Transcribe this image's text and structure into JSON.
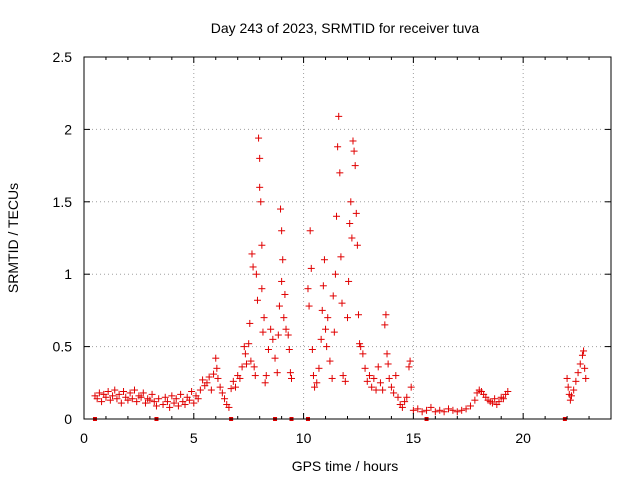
{
  "chart_data": {
    "type": "scatter",
    "title": "Day 243 of 2023, SRMTID for receiver tuva",
    "xlabel": "GPS time / hours",
    "ylabel": "SRMTID / TECUs",
    "xlim": [
      0,
      24
    ],
    "ylim": [
      0,
      2.5
    ],
    "xticks": [
      "0",
      "5",
      "10",
      "15",
      "20"
    ],
    "yticks": [
      "0",
      "0.5",
      "1",
      "1.5",
      "2",
      "2.5"
    ],
    "grid": true,
    "marker": "+",
    "color": "#e00000",
    "series": [
      {
        "name": "SRMTID",
        "points": [
          [
            0.5,
            0.16
          ],
          [
            0.6,
            0.14
          ],
          [
            0.7,
            0.18
          ],
          [
            0.8,
            0.12
          ],
          [
            0.9,
            0.17
          ],
          [
            1.0,
            0.15
          ],
          [
            1.1,
            0.19
          ],
          [
            1.2,
            0.13
          ],
          [
            1.3,
            0.16
          ],
          [
            1.4,
            0.2
          ],
          [
            1.5,
            0.14
          ],
          [
            1.6,
            0.17
          ],
          [
            1.7,
            0.11
          ],
          [
            1.8,
            0.19
          ],
          [
            1.9,
            0.15
          ],
          [
            2.0,
            0.13
          ],
          [
            2.1,
            0.18
          ],
          [
            2.2,
            0.14
          ],
          [
            2.3,
            0.2
          ],
          [
            2.4,
            0.12
          ],
          [
            2.5,
            0.16
          ],
          [
            2.6,
            0.15
          ],
          [
            2.7,
            0.18
          ],
          [
            2.8,
            0.11
          ],
          [
            2.9,
            0.14
          ],
          [
            3.0,
            0.13
          ],
          [
            3.1,
            0.17
          ],
          [
            3.2,
            0.12
          ],
          [
            3.3,
            0.09
          ],
          [
            3.4,
            0.14
          ],
          [
            3.6,
            0.1
          ],
          [
            3.7,
            0.15
          ],
          [
            3.8,
            0.12
          ],
          [
            3.9,
            0.08
          ],
          [
            4.0,
            0.16
          ],
          [
            4.1,
            0.11
          ],
          [
            4.2,
            0.14
          ],
          [
            4.3,
            0.09
          ],
          [
            4.4,
            0.17
          ],
          [
            4.5,
            0.12
          ],
          [
            4.6,
            0.1
          ],
          [
            4.7,
            0.15
          ],
          [
            4.8,
            0.13
          ],
          [
            4.9,
            0.19
          ],
          [
            5.0,
            0.11
          ],
          [
            5.1,
            0.16
          ],
          [
            5.2,
            0.14
          ],
          [
            5.3,
            0.2
          ],
          [
            5.4,
            0.27
          ],
          [
            5.5,
            0.23
          ],
          [
            5.6,
            0.25
          ],
          [
            5.7,
            0.29
          ],
          [
            5.8,
            0.2
          ],
          [
            5.9,
            0.31
          ],
          [
            6.0,
            0.42
          ],
          [
            6.05,
            0.35
          ],
          [
            6.1,
            0.28
          ],
          [
            6.2,
            0.22
          ],
          [
            6.3,
            0.18
          ],
          [
            6.4,
            0.14
          ],
          [
            6.5,
            0.1
          ],
          [
            6.6,
            0.08
          ],
          [
            6.7,
            0.21
          ],
          [
            6.8,
            0.26
          ],
          [
            6.9,
            0.22
          ],
          [
            7.0,
            0.3
          ],
          [
            7.1,
            0.28
          ],
          [
            7.2,
            0.36
          ],
          [
            7.3,
            0.5
          ],
          [
            7.35,
            0.45
          ],
          [
            7.4,
            0.38
          ],
          [
            7.5,
            0.52
          ],
          [
            7.55,
            0.66
          ],
          [
            7.6,
            0.4
          ],
          [
            7.65,
            1.14
          ],
          [
            7.7,
            1.05
          ],
          [
            7.75,
            0.36
          ],
          [
            7.8,
            0.3
          ],
          [
            7.85,
            1.0
          ],
          [
            7.9,
            0.82
          ],
          [
            7.95,
            1.94
          ],
          [
            8.0,
            1.8
          ],
          [
            8.0,
            1.6
          ],
          [
            8.05,
            1.5
          ],
          [
            8.1,
            1.2
          ],
          [
            8.1,
            0.9
          ],
          [
            8.15,
            0.6
          ],
          [
            8.2,
            0.7
          ],
          [
            8.25,
            0.25
          ],
          [
            8.3,
            0.3
          ],
          [
            8.4,
            0.48
          ],
          [
            8.5,
            0.62
          ],
          [
            8.6,
            0.55
          ],
          [
            8.7,
            0.42
          ],
          [
            8.8,
            0.32
          ],
          [
            8.85,
            0.58
          ],
          [
            8.9,
            0.78
          ],
          [
            8.95,
            1.45
          ],
          [
            9.0,
            1.3
          ],
          [
            9.0,
            0.95
          ],
          [
            9.05,
            1.1
          ],
          [
            9.1,
            0.7
          ],
          [
            9.15,
            0.86
          ],
          [
            9.2,
            0.62
          ],
          [
            9.3,
            0.58
          ],
          [
            9.35,
            0.48
          ],
          [
            9.4,
            0.32
          ],
          [
            9.45,
            0.28
          ],
          [
            10.2,
            0.9
          ],
          [
            10.25,
            0.78
          ],
          [
            10.3,
            1.3
          ],
          [
            10.35,
            1.04
          ],
          [
            10.4,
            0.48
          ],
          [
            10.45,
            0.3
          ],
          [
            10.5,
            0.22
          ],
          [
            10.6,
            0.25
          ],
          [
            10.7,
            0.35
          ],
          [
            10.8,
            0.55
          ],
          [
            10.85,
            0.75
          ],
          [
            10.9,
            0.92
          ],
          [
            10.95,
            1.1
          ],
          [
            11.0,
            0.62
          ],
          [
            11.05,
            0.5
          ],
          [
            11.1,
            0.7
          ],
          [
            11.2,
            0.4
          ],
          [
            11.3,
            0.28
          ],
          [
            11.35,
            0.85
          ],
          [
            11.4,
            0.6
          ],
          [
            11.45,
            1.0
          ],
          [
            11.5,
            1.4
          ],
          [
            11.55,
            1.88
          ],
          [
            11.6,
            2.09
          ],
          [
            11.65,
            1.7
          ],
          [
            11.7,
            1.12
          ],
          [
            11.75,
            0.8
          ],
          [
            11.8,
            0.3
          ],
          [
            11.9,
            0.26
          ],
          [
            12.0,
            0.7
          ],
          [
            12.05,
            0.95
          ],
          [
            12.1,
            1.35
          ],
          [
            12.15,
            1.5
          ],
          [
            12.2,
            1.25
          ],
          [
            12.25,
            1.92
          ],
          [
            12.3,
            1.85
          ],
          [
            12.35,
            1.75
          ],
          [
            12.4,
            1.42
          ],
          [
            12.45,
            1.2
          ],
          [
            12.5,
            0.72
          ],
          [
            12.55,
            0.52
          ],
          [
            12.6,
            0.5
          ],
          [
            12.7,
            0.45
          ],
          [
            12.8,
            0.35
          ],
          [
            12.9,
            0.26
          ],
          [
            13.0,
            0.3
          ],
          [
            13.1,
            0.22
          ],
          [
            13.2,
            0.28
          ],
          [
            13.3,
            0.2
          ],
          [
            13.4,
            0.36
          ],
          [
            13.5,
            0.25
          ],
          [
            13.6,
            0.2
          ],
          [
            13.7,
            0.65
          ],
          [
            13.75,
            0.72
          ],
          [
            13.8,
            0.45
          ],
          [
            13.85,
            0.38
          ],
          [
            13.9,
            0.28
          ],
          [
            14.0,
            0.22
          ],
          [
            14.1,
            0.18
          ],
          [
            14.2,
            0.3
          ],
          [
            14.3,
            0.15
          ],
          [
            14.4,
            0.1
          ],
          [
            14.5,
            0.08
          ],
          [
            14.6,
            0.12
          ],
          [
            14.7,
            0.15
          ],
          [
            14.8,
            0.36
          ],
          [
            14.85,
            0.4
          ],
          [
            14.9,
            0.22
          ],
          [
            15.0,
            0.06
          ],
          [
            15.2,
            0.07
          ],
          [
            15.4,
            0.05
          ],
          [
            15.6,
            0.06
          ],
          [
            15.8,
            0.08
          ],
          [
            16.0,
            0.05
          ],
          [
            16.2,
            0.06
          ],
          [
            16.4,
            0.05
          ],
          [
            16.6,
            0.07
          ],
          [
            16.8,
            0.06
          ],
          [
            17.0,
            0.05
          ],
          [
            17.2,
            0.06
          ],
          [
            17.4,
            0.07
          ],
          [
            17.6,
            0.09
          ],
          [
            17.8,
            0.13
          ],
          [
            17.9,
            0.18
          ],
          [
            18.0,
            0.2
          ],
          [
            18.1,
            0.19
          ],
          [
            18.2,
            0.17
          ],
          [
            18.3,
            0.15
          ],
          [
            18.4,
            0.13
          ],
          [
            18.5,
            0.12
          ],
          [
            18.6,
            0.11
          ],
          [
            18.7,
            0.14
          ],
          [
            18.8,
            0.1
          ],
          [
            18.9,
            0.12
          ],
          [
            19.0,
            0.15
          ],
          [
            19.1,
            0.14
          ],
          [
            19.2,
            0.17
          ],
          [
            19.3,
            0.19
          ],
          [
            22.0,
            0.28
          ],
          [
            22.05,
            0.22
          ],
          [
            22.1,
            0.17
          ],
          [
            22.15,
            0.13
          ],
          [
            22.2,
            0.16
          ],
          [
            22.3,
            0.2
          ],
          [
            22.4,
            0.26
          ],
          [
            22.5,
            0.32
          ],
          [
            22.6,
            0.38
          ],
          [
            22.7,
            0.44
          ],
          [
            22.75,
            0.47
          ],
          [
            22.8,
            0.35
          ],
          [
            22.85,
            0.28
          ]
        ]
      }
    ],
    "axis_markers_x": [
      0.5,
      3.3,
      6.7,
      8.7,
      9.45,
      10.2,
      15.6,
      21.9
    ]
  }
}
